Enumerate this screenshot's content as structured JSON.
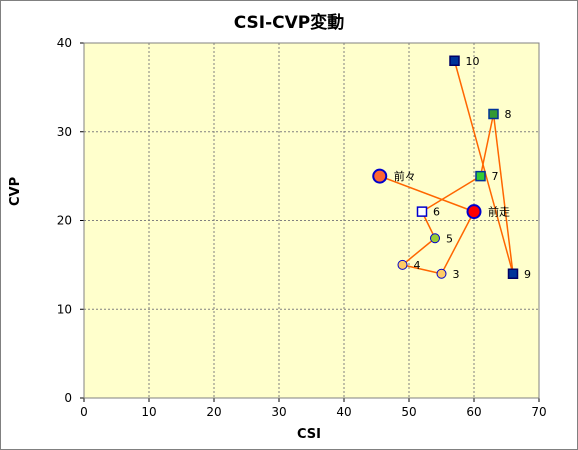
{
  "chart_data": {
    "type": "scatter",
    "title": "CSI-CVP変動",
    "xlabel": "CSI",
    "ylabel": "CVP",
    "xlim": [
      0,
      70
    ],
    "ylim": [
      0,
      40
    ],
    "xticks": [
      0,
      10,
      20,
      30,
      40,
      50,
      60,
      70
    ],
    "yticks": [
      0,
      10,
      20,
      30,
      40
    ],
    "grid": true,
    "plot_background": "#ffffcc",
    "line_color": "#ff6600",
    "points": [
      {
        "label": "前々",
        "x": 45.5,
        "y": 25,
        "marker": "circle",
        "fill": "#ff6633",
        "stroke": "#0000cc"
      },
      {
        "label": "前走",
        "x": 60,
        "y": 21,
        "marker": "circle",
        "fill": "#ff0000",
        "stroke": "#0000cc"
      },
      {
        "label": "3",
        "x": 55,
        "y": 14,
        "marker": "circle",
        "fill": "#ffcc66",
        "stroke": "#0000cc"
      },
      {
        "label": "4",
        "x": 49,
        "y": 15,
        "marker": "circle",
        "fill": "#ffcc66",
        "stroke": "#0000cc"
      },
      {
        "label": "5",
        "x": 54,
        "y": 18,
        "marker": "circle",
        "fill": "#99cc33",
        "stroke": "#0000cc"
      },
      {
        "label": "6",
        "x": 52,
        "y": 21,
        "marker": "square",
        "fill": "#ffffff",
        "stroke": "#0000cc"
      },
      {
        "label": "7",
        "x": 61,
        "y": 25,
        "marker": "square",
        "fill": "#33cc33",
        "stroke": "#003399"
      },
      {
        "label": "8",
        "x": 63,
        "y": 32,
        "marker": "square",
        "fill": "#339933",
        "stroke": "#003399"
      },
      {
        "label": "9",
        "x": 66,
        "y": 14,
        "marker": "square",
        "fill": "#003399",
        "stroke": "#000066"
      },
      {
        "label": "10",
        "x": 57,
        "y": 38,
        "marker": "square",
        "fill": "#003399",
        "stroke": "#000066"
      }
    ]
  }
}
